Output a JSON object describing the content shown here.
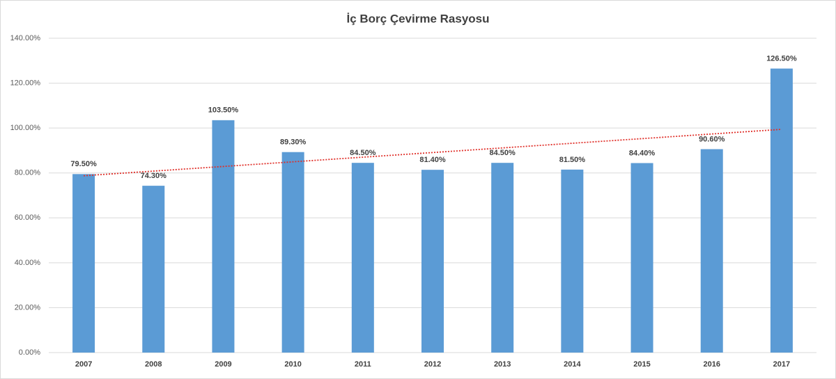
{
  "chart_data": {
    "type": "bar",
    "title": "İç Borç Çevirme Rasyosu",
    "categories": [
      "2007",
      "2008",
      "2009",
      "2010",
      "2011",
      "2012",
      "2013",
      "2014",
      "2015",
      "2016",
      "2017"
    ],
    "values": [
      79.5,
      74.3,
      103.5,
      89.3,
      84.5,
      81.4,
      84.5,
      81.5,
      84.4,
      90.6,
      126.5
    ],
    "value_labels": [
      "79.50%",
      "74.30%",
      "103.50%",
      "89.30%",
      "84.50%",
      "81.40%",
      "84.50%",
      "81.50%",
      "84.40%",
      "90.60%",
      "126.50%"
    ],
    "color": "#5b9bd5",
    "ylim": [
      0,
      140
    ],
    "yticks": [
      {
        "value": 0,
        "label": "0.00%"
      },
      {
        "value": 20,
        "label": "20.00%"
      },
      {
        "value": 40,
        "label": "40.00%"
      },
      {
        "value": 60,
        "label": "60.00%"
      },
      {
        "value": 80,
        "label": "80.00%"
      },
      {
        "value": 100,
        "label": "100.00%"
      },
      {
        "value": 120,
        "label": "120.00%"
      },
      {
        "value": 140,
        "label": "140.00%"
      }
    ],
    "grid": true,
    "trendline": "linear",
    "trendline_color": "#e0302a"
  }
}
